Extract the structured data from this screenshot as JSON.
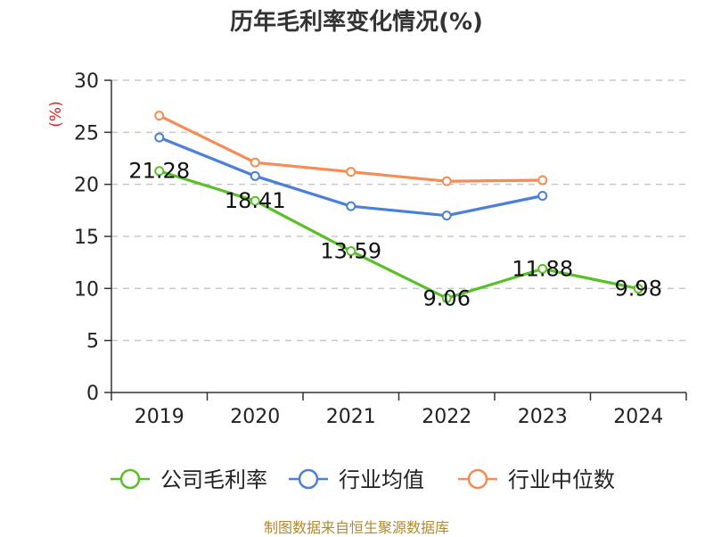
{
  "title": "历年毛利率变化情况(%)",
  "source": "制图数据来自恒生聚源数据库",
  "chart_data": {
    "type": "line",
    "title": "历年毛利率变化情况(%)",
    "ylabel": "(%)",
    "xlabel": "",
    "categories": [
      "2019",
      "2020",
      "2021",
      "2022",
      "2023",
      "2024"
    ],
    "ylim": [
      0,
      30
    ],
    "yticks": [
      0,
      5,
      10,
      15,
      20,
      25,
      30
    ],
    "grid": true,
    "legend_position": "bottom",
    "series": [
      {
        "name": "公司毛利率",
        "color": "#5ac02a",
        "values": [
          21.28,
          18.41,
          13.59,
          9.06,
          11.88,
          9.98
        ],
        "labels": [
          "21.28",
          "18.41",
          "13.59",
          "9.06",
          "11.88",
          "9.98"
        ]
      },
      {
        "name": "行业均值",
        "color": "#4a7fdb",
        "values": [
          24.5,
          20.8,
          17.9,
          17.0,
          18.9,
          null
        ]
      },
      {
        "name": "行业中位数",
        "color": "#f58c55",
        "values": [
          26.6,
          22.1,
          21.2,
          20.3,
          20.4,
          null
        ]
      }
    ]
  }
}
